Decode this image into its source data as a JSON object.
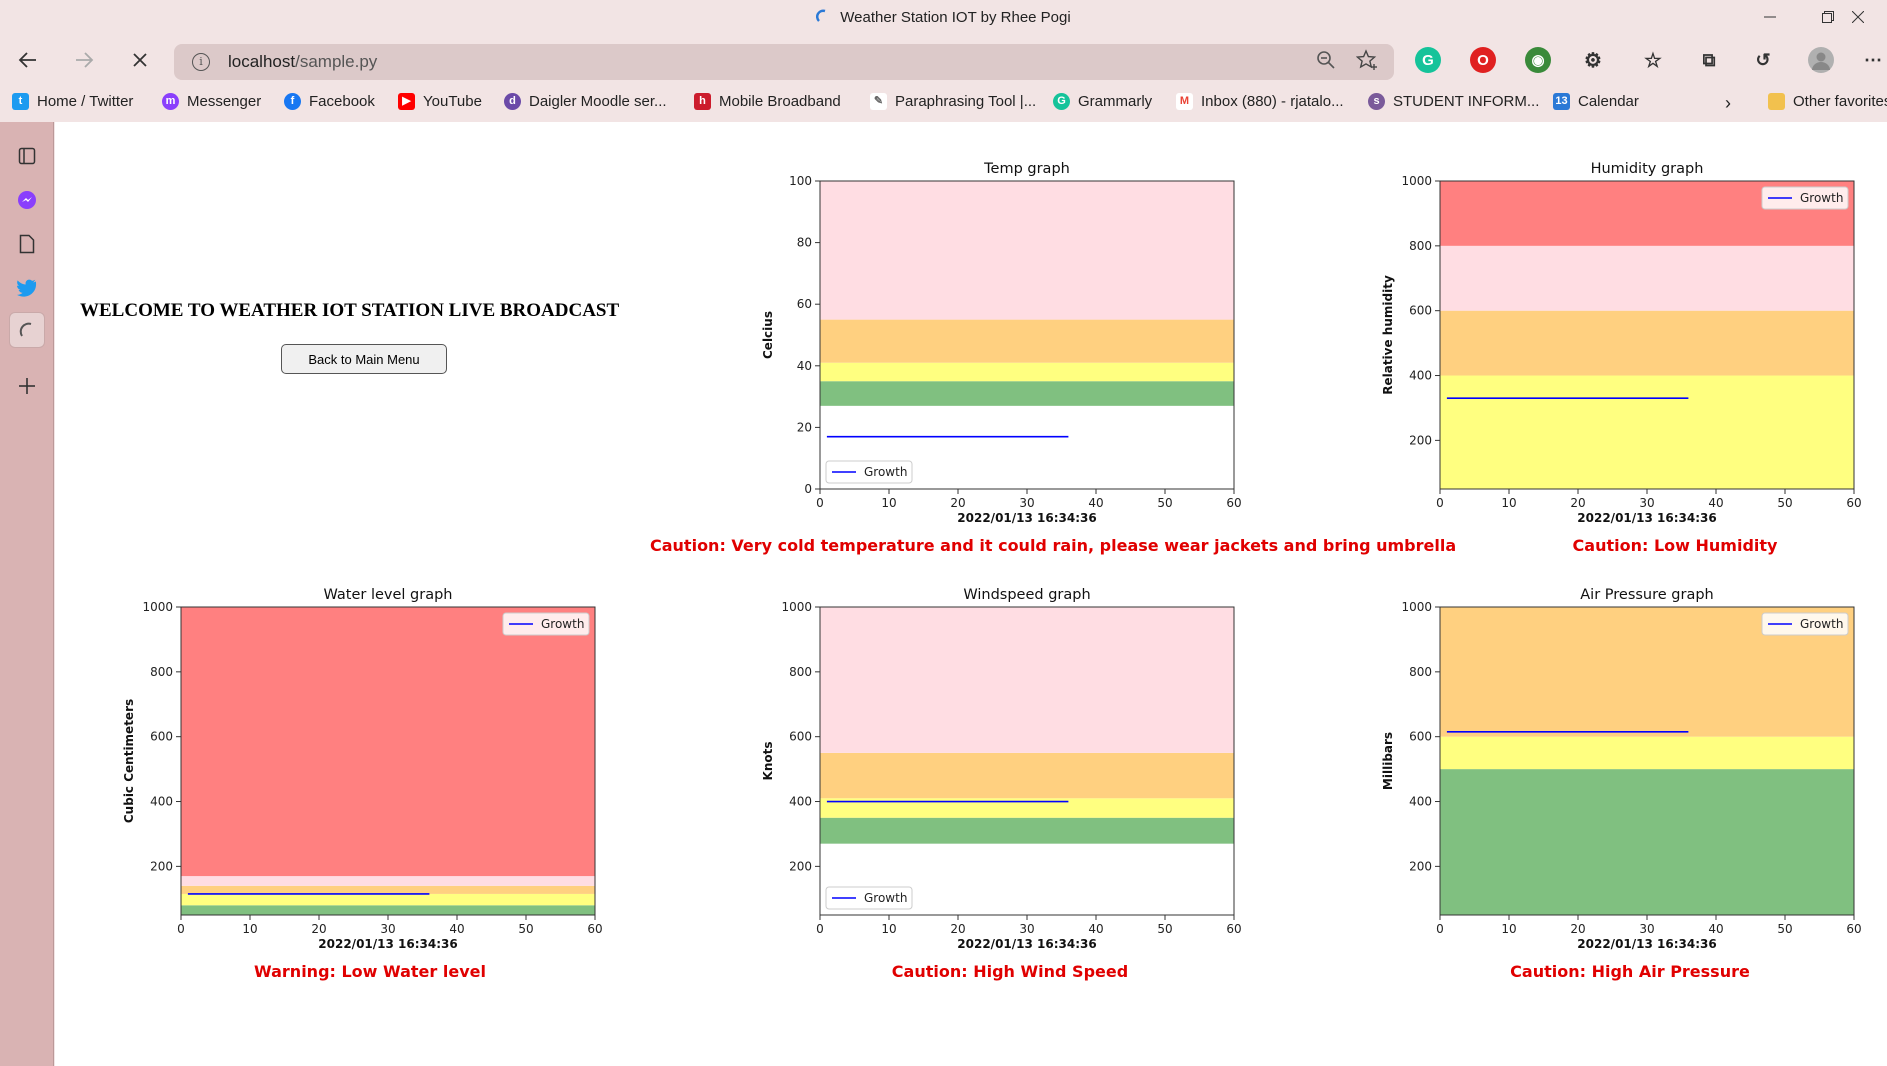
{
  "window": {
    "title": "Weather Station IOT by Rhee Pogi"
  },
  "address_bar": {
    "host": "localhost",
    "path": "/sample.py"
  },
  "bookmarks": [
    {
      "label": "Home / Twitter",
      "color": "#1d9bf0",
      "icon": "twitter-icon"
    },
    {
      "label": "Messenger",
      "color": "#8a3ffc",
      "icon": "messenger-icon"
    },
    {
      "label": "Facebook",
      "color": "#1877f2",
      "icon": "facebook-icon"
    },
    {
      "label": "YouTube",
      "color": "#ff0000",
      "icon": "youtube-icon"
    },
    {
      "label": "Daigler Moodle ser...",
      "color": "#6b4aa8",
      "icon": "moodle-icon"
    },
    {
      "label": "Mobile Broadband",
      "color": "#cc1c2c",
      "icon": "huawei-icon"
    },
    {
      "label": "Paraphrasing Tool |...",
      "color": "#666666",
      "icon": "feather-icon"
    },
    {
      "label": "Grammarly",
      "color": "#15c39a",
      "icon": "grammarly-icon"
    },
    {
      "label": "Inbox (880) - rjatalo...",
      "color": "#ea4335",
      "icon": "gmail-icon"
    },
    {
      "label": "STUDENT INFORM...",
      "color": "#7a5a9a",
      "icon": "student-icon"
    },
    {
      "label": "Calendar",
      "color": "#2b79d6",
      "icon": "calendar-icon"
    }
  ],
  "other_favorites": "Other favorites",
  "page": {
    "welcome": "WELCOME TO WEATHER IOT STATION LIVE BROADCAST",
    "back_button": "Back to Main Menu"
  },
  "chart_data": [
    {
      "type": "line",
      "title": "Temp graph",
      "xlabel": "2022/01/13 16:34:36",
      "ylabel": "Celcius",
      "xlim": [
        0,
        60
      ],
      "ylim": [
        0,
        100
      ],
      "xticks": [
        0,
        10,
        20,
        30,
        40,
        50,
        60
      ],
      "yticks": [
        0,
        20,
        40,
        60,
        80,
        100
      ],
      "legend": {
        "label": "Growth",
        "position": "lower-left"
      },
      "bands": [
        {
          "from": 27,
          "to": 35,
          "color": "#80c080"
        },
        {
          "from": 35,
          "to": 41,
          "color": "#ffff80"
        },
        {
          "from": 41,
          "to": 55,
          "color": "#ffd080"
        },
        {
          "from": 55,
          "to": 100,
          "color": "#ffdde3"
        }
      ],
      "series": [
        {
          "name": "Growth",
          "color": "#0000ff",
          "x": [
            1,
            36
          ],
          "y": [
            17,
            17
          ]
        }
      ],
      "caption": "Caution: Very cold temperature and it could rain, please wear jackets and bring umbrella"
    },
    {
      "type": "line",
      "title": "Humidity graph",
      "xlabel": "2022/01/13 16:34:36",
      "ylabel": "Relative humidity",
      "xlim": [
        0,
        60
      ],
      "ylim": [
        50,
        1000
      ],
      "xticks": [
        0,
        10,
        20,
        30,
        40,
        50,
        60
      ],
      "yticks": [
        200,
        400,
        600,
        800,
        1000
      ],
      "legend": {
        "label": "Growth",
        "position": "upper-right"
      },
      "bands": [
        {
          "from": 50,
          "to": 400,
          "color": "#ffff80"
        },
        {
          "from": 400,
          "to": 600,
          "color": "#ffd080"
        },
        {
          "from": 600,
          "to": 800,
          "color": "#ffdde3"
        },
        {
          "from": 800,
          "to": 1000,
          "color": "#ff8080"
        }
      ],
      "series": [
        {
          "name": "Growth",
          "color": "#0000ff",
          "x": [
            1,
            36
          ],
          "y": [
            330,
            330
          ]
        }
      ],
      "caption": "Caution: Low Humidity"
    },
    {
      "type": "line",
      "title": "Water level graph",
      "xlabel": "2022/01/13 16:34:36",
      "ylabel": "Cubic Centimeters",
      "xlim": [
        0,
        60
      ],
      "ylim": [
        50,
        1000
      ],
      "xticks": [
        0,
        10,
        20,
        30,
        40,
        50,
        60
      ],
      "yticks": [
        200,
        400,
        600,
        800,
        1000
      ],
      "legend": {
        "label": "Growth",
        "position": "upper-right"
      },
      "bands": [
        {
          "from": 50,
          "to": 80,
          "color": "#80c080"
        },
        {
          "from": 80,
          "to": 115,
          "color": "#ffff80"
        },
        {
          "from": 115,
          "to": 140,
          "color": "#ffd080"
        },
        {
          "from": 140,
          "to": 170,
          "color": "#ffdde3"
        },
        {
          "from": 170,
          "to": 1000,
          "color": "#ff8080"
        }
      ],
      "series": [
        {
          "name": "Growth",
          "color": "#0000ff",
          "x": [
            1,
            36
          ],
          "y": [
            115,
            115
          ]
        }
      ],
      "caption": "Warning: Low Water level"
    },
    {
      "type": "line",
      "title": "Windspeed graph",
      "xlabel": "2022/01/13 16:34:36",
      "ylabel": "Knots",
      "xlim": [
        0,
        60
      ],
      "ylim": [
        50,
        1000
      ],
      "xticks": [
        0,
        10,
        20,
        30,
        40,
        50,
        60
      ],
      "yticks": [
        200,
        400,
        600,
        800,
        1000
      ],
      "legend": {
        "label": "Growth",
        "position": "lower-left"
      },
      "bands": [
        {
          "from": 270,
          "to": 350,
          "color": "#80c080"
        },
        {
          "from": 350,
          "to": 410,
          "color": "#ffff80"
        },
        {
          "from": 410,
          "to": 550,
          "color": "#ffd080"
        },
        {
          "from": 550,
          "to": 1000,
          "color": "#ffdde3"
        }
      ],
      "series": [
        {
          "name": "Growth",
          "color": "#0000ff",
          "x": [
            1,
            36
          ],
          "y": [
            400,
            400
          ]
        }
      ],
      "caption": "Caution: High Wind Speed"
    },
    {
      "type": "line",
      "title": "Air Pressure graph",
      "xlabel": "2022/01/13 16:34:36",
      "ylabel": "Millibars",
      "xlim": [
        0,
        60
      ],
      "ylim": [
        50,
        1000
      ],
      "xticks": [
        0,
        10,
        20,
        30,
        40,
        50,
        60
      ],
      "yticks": [
        200,
        400,
        600,
        800,
        1000
      ],
      "legend": {
        "label": "Growth",
        "position": "upper-right"
      },
      "bands": [
        {
          "from": 50,
          "to": 500,
          "color": "#80c080"
        },
        {
          "from": 500,
          "to": 600,
          "color": "#ffff80"
        },
        {
          "from": 600,
          "to": 1000,
          "color": "#ffd080"
        }
      ],
      "series": [
        {
          "name": "Growth",
          "color": "#0000ff",
          "x": [
            1,
            36
          ],
          "y": [
            615,
            615
          ]
        }
      ],
      "caption": "Caution: High Air Pressure"
    }
  ]
}
